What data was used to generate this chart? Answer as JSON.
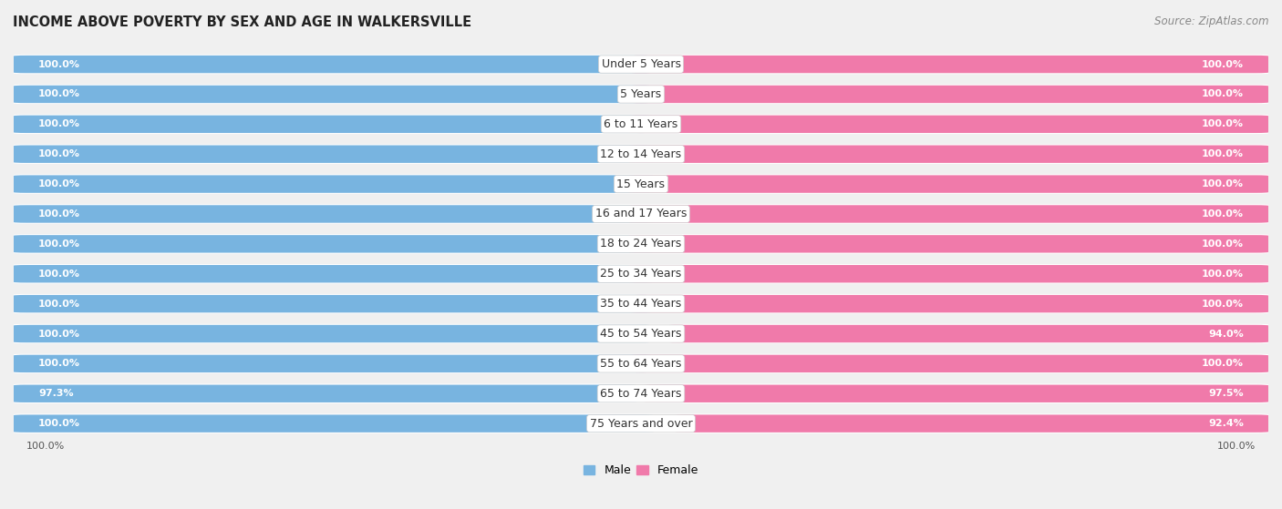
{
  "title": "INCOME ABOVE POVERTY BY SEX AND AGE IN WALKERSVILLE",
  "source": "Source: ZipAtlas.com",
  "categories": [
    "Under 5 Years",
    "5 Years",
    "6 to 11 Years",
    "12 to 14 Years",
    "15 Years",
    "16 and 17 Years",
    "18 to 24 Years",
    "25 to 34 Years",
    "35 to 44 Years",
    "45 to 54 Years",
    "55 to 64 Years",
    "65 to 74 Years",
    "75 Years and over"
  ],
  "male_values": [
    100.0,
    100.0,
    100.0,
    100.0,
    100.0,
    100.0,
    100.0,
    100.0,
    100.0,
    100.0,
    100.0,
    97.3,
    100.0
  ],
  "female_values": [
    100.0,
    100.0,
    100.0,
    100.0,
    100.0,
    100.0,
    100.0,
    100.0,
    100.0,
    94.0,
    100.0,
    97.5,
    92.4
  ],
  "male_color": "#78b4e0",
  "female_color": "#f07aaa",
  "female_light_color": "#f5a8c8",
  "bg_color": "#f0f0f0",
  "bar_row_bg": "#e0e0e0",
  "max_value": 100.0,
  "title_fontsize": 10.5,
  "label_fontsize": 8.0,
  "category_fontsize": 9.0,
  "legend_fontsize": 9,
  "source_fontsize": 8.5
}
